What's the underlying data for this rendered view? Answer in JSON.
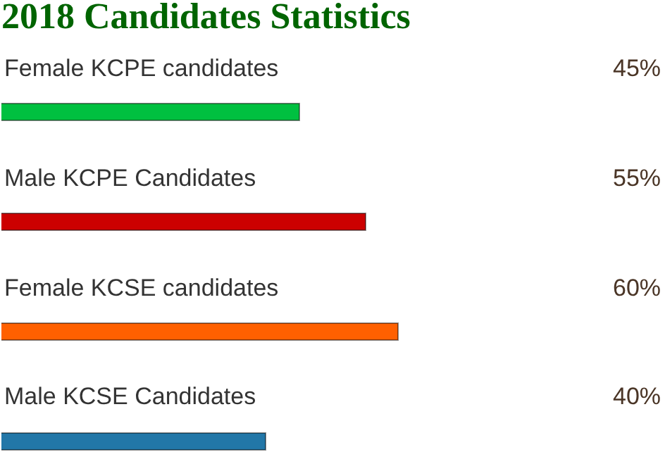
{
  "chart_data": {
    "type": "bar",
    "orientation": "horizontal",
    "title": "2018 Candidates Statistics",
    "categories": [
      "Female KCPE candidates",
      "Male KCPE Candidates",
      "Female KCSE candidates",
      "Male KCSE Candidates"
    ],
    "values": [
      45,
      55,
      60,
      40
    ],
    "colors": [
      "#00c040",
      "#cc0000",
      "#ff6000",
      "#2277a8"
    ],
    "value_labels": [
      "45%",
      "55%",
      "60%",
      "40%"
    ],
    "xlim": [
      0,
      100
    ]
  }
}
